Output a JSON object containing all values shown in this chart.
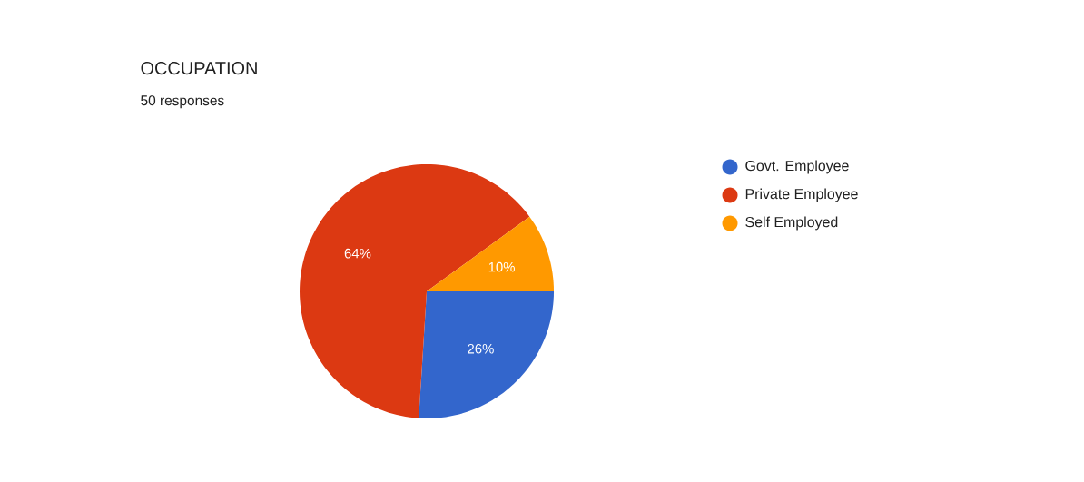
{
  "chart_data": {
    "type": "pie",
    "title": "OCCUPATION",
    "subtitle": "50 responses",
    "categories": [
      "Govt. Employee",
      "Private Employee",
      "Self Employed"
    ],
    "values": [
      26,
      64,
      10
    ],
    "colors": [
      "#3366cc",
      "#dc3912",
      "#ff9900"
    ],
    "value_labels": [
      "26%",
      "64%",
      "10%"
    ],
    "legend": "right"
  }
}
